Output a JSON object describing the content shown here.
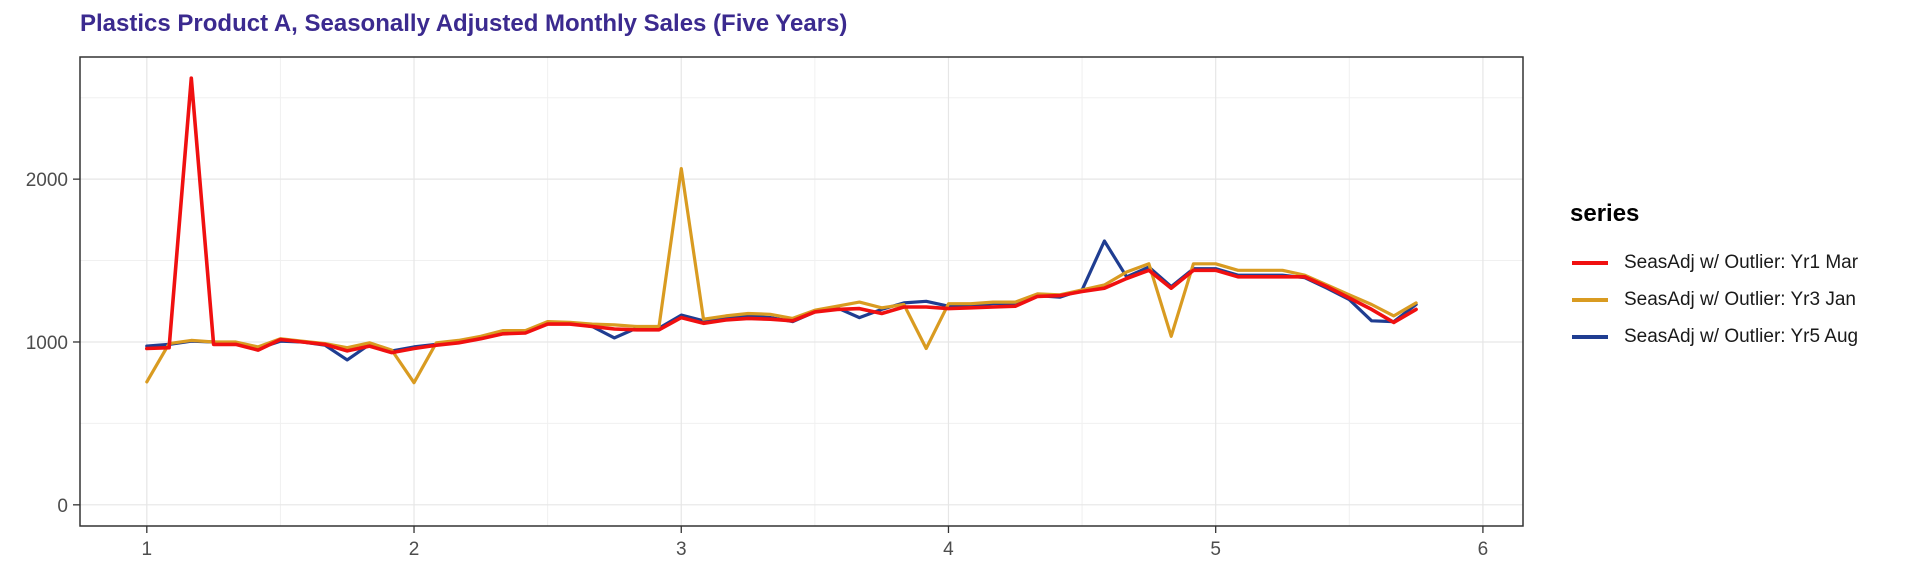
{
  "title": "Plastics Product A, Seasonally Adjusted Monthly Sales (Five Years)",
  "chart_data": {
    "type": "line",
    "xlim": [
      0.75,
      6.15
    ],
    "ylim": [
      -130,
      2750
    ],
    "x_ticks": [
      1,
      2,
      3,
      4,
      5,
      6
    ],
    "x_tick_labels": [
      "1",
      "2",
      "3",
      "4",
      "5",
      "6"
    ],
    "y_ticks": [
      0,
      1000,
      2000
    ],
    "y_tick_labels": [
      "0",
      "1000",
      "2000"
    ],
    "grid": true,
    "legend_title": "series",
    "legend_position": "right",
    "series": [
      {
        "name": "SeasAdj w/ Outlier: Yr5 Aug",
        "color": "#1f3d91",
        "values": [
          975,
          985,
          1005,
          1000,
          995,
          960,
          1005,
          1000,
          980,
          890,
          985,
          945,
          970,
          985,
          1005,
          1030,
          1060,
          1065,
          1115,
          1115,
          1095,
          1025,
          1085,
          1085,
          1165,
          1130,
          1150,
          1160,
          1150,
          1125,
          1185,
          1210,
          1150,
          1200,
          1240,
          1250,
          1220,
          1225,
          1235,
          1235,
          1285,
          1275,
          1320,
          1620,
          1400,
          1460,
          1340,
          1450,
          1450,
          1410,
          1410,
          1410,
          1395,
          1330,
          1260,
          1130,
          1125,
          1230
        ]
      },
      {
        "name": "SeasAdj w/ Outlier: Yr3 Jan",
        "color": "#d99b21",
        "values": [
          755,
          990,
          1010,
          1000,
          1000,
          970,
          1020,
          1005,
          990,
          965,
          995,
          950,
          750,
          995,
          1010,
          1035,
          1070,
          1070,
          1125,
          1120,
          1110,
          1105,
          1095,
          1095,
          2065,
          1140,
          1160,
          1175,
          1170,
          1145,
          1195,
          1220,
          1245,
          1210,
          1230,
          960,
          1235,
          1235,
          1245,
          1245,
          1295,
          1290,
          1320,
          1350,
          1430,
          1480,
          1035,
          1480,
          1480,
          1440,
          1440,
          1440,
          1410,
          1350,
          1290,
          1230,
          1160,
          1240
        ]
      },
      {
        "name": "SeasAdj w/ Outlier: Yr1 Mar",
        "color": "#f01010",
        "values": [
          960,
          965,
          2620,
          985,
          985,
          950,
          1015,
          1000,
          985,
          945,
          975,
          935,
          960,
          980,
          995,
          1020,
          1050,
          1055,
          1110,
          1110,
          1095,
          1080,
          1075,
          1075,
          1150,
          1115,
          1135,
          1145,
          1140,
          1130,
          1185,
          1200,
          1205,
          1175,
          1215,
          1215,
          1205,
          1210,
          1215,
          1220,
          1280,
          1285,
          1310,
          1330,
          1390,
          1440,
          1330,
          1440,
          1440,
          1400,
          1400,
          1400,
          1400,
          1340,
          1270,
          1200,
          1120,
          1200
        ]
      }
    ]
  }
}
